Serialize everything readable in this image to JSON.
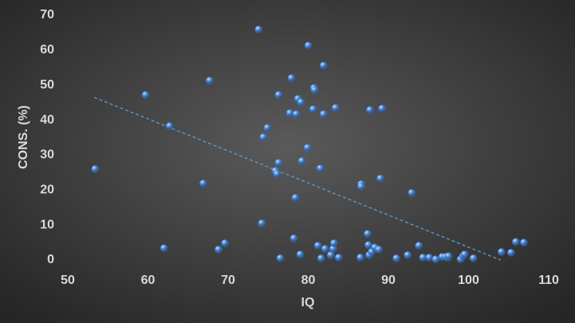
{
  "chart_data": {
    "type": "scatter",
    "xlabel": "IQ",
    "ylabel": "CONS. (%)",
    "color": "#4a86d4",
    "x": [
      53.4,
      59.7,
      62.7,
      62.0,
      66.9,
      67.7,
      68.8,
      69.6,
      73.8,
      74.2,
      74.4,
      74.9,
      75.9,
      76.1,
      76.3,
      76.3,
      76.5,
      77.7,
      77.9,
      78.2,
      78.5,
      78.4,
      78.7,
      79.0,
      79.1,
      79.2,
      79.9,
      80.0,
      80.6,
      80.7,
      80.8,
      81.2,
      81.5,
      81.6,
      81.9,
      81.9,
      82.1,
      82.8,
      83.1,
      83.2,
      83.4,
      83.8,
      86.5,
      86.6,
      86.6,
      87.4,
      87.5,
      87.6,
      87.7,
      87.9,
      88.3,
      88.8,
      89.0,
      89.2,
      91.0,
      92.4,
      92.9,
      93.8,
      94.3,
      95.1,
      95.9,
      96.7,
      97.1,
      97.4,
      97.5,
      99.0,
      99.3,
      99.5,
      100.6,
      104.1,
      105.3,
      105.9,
      106.9
    ],
    "values": [
      26.0,
      47.2,
      38.3,
      3.4,
      21.9,
      51.3,
      3.0,
      4.8,
      65.9,
      10.5,
      35.1,
      37.8,
      25.5,
      24.6,
      27.8,
      47.2,
      0.5,
      42.0,
      52.0,
      6.2,
      41.7,
      17.8,
      46.1,
      1.6,
      45.1,
      28.3,
      32.1,
      61.3,
      43.1,
      49.2,
      48.6,
      4.1,
      26.2,
      0.5,
      41.7,
      55.6,
      3.2,
      1.4,
      3.2,
      4.8,
      43.5,
      0.7,
      0.7,
      21.7,
      21.0,
      7.5,
      4.3,
      1.4,
      42.9,
      2.3,
      3.6,
      3.0,
      23.3,
      43.3,
      0.5,
      1.4,
      19.2,
      4.1,
      0.7,
      0.7,
      0.2,
      0.9,
      0.9,
      0.7,
      1.1,
      0.2,
      1.1,
      1.6,
      0.5,
      2.3,
      2.1,
      5.2,
      5.0
    ],
    "trendline": {
      "x": [
        53.3,
        104.0
      ],
      "values": [
        46.5,
        0
      ],
      "color": "#5b9bd5"
    },
    "xlim": [
      50,
      110
    ],
    "xticks": [
      50,
      60,
      70,
      80,
      90,
      100,
      110
    ],
    "ylim": [
      0,
      70
    ],
    "yticks": [
      0,
      10,
      20,
      30,
      40,
      50,
      60,
      70
    ],
    "grid": false
  }
}
